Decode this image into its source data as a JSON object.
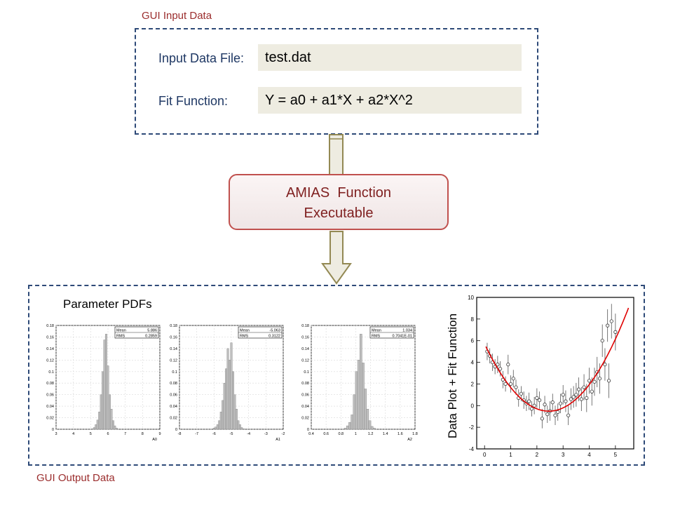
{
  "input_section": {
    "label": "GUI Input Data",
    "fields": [
      {
        "label": "Input Data File:",
        "value": "test.dat"
      },
      {
        "label": "Fit Function:",
        "value": "Y = a0 + a1*X + a2*X^2"
      }
    ]
  },
  "executable": {
    "line1": "AMIAS  Function",
    "line2": "Executable"
  },
  "output_section": {
    "label": "GUI Output Data",
    "pdf_title": "Parameter PDFs",
    "fit_plot_label": "Data Plot + Fit Function"
  },
  "colors": {
    "section_label": "#9b2d2d",
    "dashed_border": "#2e4a78",
    "field_bg": "#eeece1",
    "exec_border": "#c0504d",
    "arrow_fill": "#eeece1",
    "arrow_stroke": "#938953",
    "fit_curve": "#e00000",
    "hist_fill": "#bfbfbf"
  },
  "chart_data": [
    {
      "type": "bar",
      "xlabel": "A0",
      "xticks": [
        3,
        4,
        5,
        6,
        7,
        8,
        9
      ],
      "yticks": [
        0,
        0.02,
        0.04,
        0.06,
        0.08,
        0.1,
        0.12,
        0.14,
        0.16,
        0.18
      ],
      "xlim": [
        3,
        9
      ],
      "ylim": [
        0,
        0.18
      ],
      "stats": [
        {
          "name": "Mean",
          "value": "5.886"
        },
        {
          "name": "RMS",
          "value": "0.2859"
        }
      ],
      "bins": [
        [
          5.1,
          0.001
        ],
        [
          5.2,
          0.003
        ],
        [
          5.3,
          0.008
        ],
        [
          5.4,
          0.016
        ],
        [
          5.5,
          0.03
        ],
        [
          5.6,
          0.06
        ],
        [
          5.7,
          0.1
        ],
        [
          5.8,
          0.155
        ],
        [
          5.9,
          0.165
        ],
        [
          6.0,
          0.11
        ],
        [
          6.1,
          0.06
        ],
        [
          6.2,
          0.035
        ],
        [
          6.3,
          0.015
        ],
        [
          6.4,
          0.006
        ],
        [
          6.5,
          0.002
        ]
      ]
    },
    {
      "type": "bar",
      "xlabel": "A1",
      "xticks": [
        -8,
        -7,
        -6,
        -5,
        -4,
        -3,
        -2
      ],
      "yticks": [
        0,
        0.02,
        0.04,
        0.06,
        0.08,
        0.1,
        0.12,
        0.14,
        0.16,
        0.18
      ],
      "xlim": [
        -8,
        -2
      ],
      "ylim": [
        0,
        0.18
      ],
      "stats": [
        {
          "name": "Mean",
          "value": "-5.063"
        },
        {
          "name": "RMS",
          "value": "0.3122"
        }
      ],
      "bins": [
        [
          -6.0,
          0.002
        ],
        [
          -5.9,
          0.004
        ],
        [
          -5.8,
          0.008
        ],
        [
          -5.7,
          0.015
        ],
        [
          -5.6,
          0.03
        ],
        [
          -5.5,
          0.05
        ],
        [
          -5.4,
          0.08
        ],
        [
          -5.3,
          0.105
        ],
        [
          -5.2,
          0.14
        ],
        [
          -5.1,
          0.12
        ],
        [
          -5.0,
          0.15
        ],
        [
          -4.9,
          0.1
        ],
        [
          -4.8,
          0.06
        ],
        [
          -4.7,
          0.035
        ],
        [
          -4.6,
          0.015
        ],
        [
          -4.5,
          0.008
        ],
        [
          -4.4,
          0.003
        ],
        [
          -4.3,
          0.001
        ]
      ]
    },
    {
      "type": "bar",
      "xlabel": "A2",
      "xticks": [
        0.4,
        0.6,
        0.8,
        1,
        1.2,
        1.4,
        1.6,
        1.8
      ],
      "yticks": [
        0,
        0.02,
        0.04,
        0.06,
        0.08,
        0.1,
        0.12,
        0.14,
        0.16,
        0.18
      ],
      "xlim": [
        0.4,
        1.8
      ],
      "ylim": [
        0,
        0.18
      ],
      "stats": [
        {
          "name": "Mean",
          "value": "1.034"
        },
        {
          "name": "RMS",
          "value": "0.7041E-01"
        }
      ],
      "bins": [
        [
          0.86,
          0.002
        ],
        [
          0.89,
          0.006
        ],
        [
          0.92,
          0.012
        ],
        [
          0.95,
          0.025
        ],
        [
          0.98,
          0.06
        ],
        [
          1.01,
          0.1
        ],
        [
          1.04,
          0.12
        ],
        [
          1.07,
          0.165
        ],
        [
          1.1,
          0.115
        ],
        [
          1.13,
          0.07
        ],
        [
          1.16,
          0.035
        ],
        [
          1.19,
          0.015
        ],
        [
          1.22,
          0.005
        ],
        [
          1.25,
          0.002
        ]
      ]
    },
    {
      "type": "scatter",
      "xticks": [
        0,
        1,
        2,
        3,
        4,
        5
      ],
      "yticks": [
        -4,
        -2,
        0,
        2,
        4,
        6,
        8,
        10
      ],
      "xlim": [
        -0.3,
        5.7
      ],
      "ylim": [
        -4,
        10
      ],
      "fit_coeffs": [
        5.7,
        -5.06,
        1.03
      ],
      "fit_range": [
        0.05,
        5.5
      ],
      "points": [
        {
          "x": 0.1,
          "y": 5.0,
          "e": 0.8
        },
        {
          "x": 0.2,
          "y": 4.6,
          "e": 0.7
        },
        {
          "x": 0.3,
          "y": 4.0,
          "e": 0.8
        },
        {
          "x": 0.4,
          "y": 3.6,
          "e": 0.7
        },
        {
          "x": 0.5,
          "y": 3.8,
          "e": 0.8
        },
        {
          "x": 0.6,
          "y": 3.4,
          "e": 0.7
        },
        {
          "x": 0.7,
          "y": 2.4,
          "e": 0.8
        },
        {
          "x": 0.8,
          "y": 2.0,
          "e": 0.7
        },
        {
          "x": 0.9,
          "y": 3.8,
          "e": 0.9
        },
        {
          "x": 1.0,
          "y": 2.0,
          "e": 0.8
        },
        {
          "x": 1.1,
          "y": 2.5,
          "e": 0.8
        },
        {
          "x": 1.2,
          "y": 1.7,
          "e": 0.7
        },
        {
          "x": 1.3,
          "y": 0.7,
          "e": 0.8
        },
        {
          "x": 1.4,
          "y": 1.1,
          "e": 0.7
        },
        {
          "x": 1.5,
          "y": 0.5,
          "e": 0.8
        },
        {
          "x": 1.6,
          "y": 0.2,
          "e": 0.7
        },
        {
          "x": 1.7,
          "y": 0.4,
          "e": 0.8
        },
        {
          "x": 1.8,
          "y": -0.3,
          "e": 0.7
        },
        {
          "x": 1.9,
          "y": 0.0,
          "e": 0.8
        },
        {
          "x": 2.0,
          "y": 0.7,
          "e": 0.9
        },
        {
          "x": 2.1,
          "y": 0.5,
          "e": 0.8
        },
        {
          "x": 2.2,
          "y": -1.2,
          "e": 0.9
        },
        {
          "x": 2.3,
          "y": 0.1,
          "e": 0.8
        },
        {
          "x": 2.4,
          "y": -0.8,
          "e": 0.8
        },
        {
          "x": 2.5,
          "y": -0.5,
          "e": 0.9
        },
        {
          "x": 2.6,
          "y": 0.3,
          "e": 0.8
        },
        {
          "x": 2.7,
          "y": -0.9,
          "e": 0.9
        },
        {
          "x": 2.8,
          "y": -0.6,
          "e": 0.8
        },
        {
          "x": 2.9,
          "y": 0.2,
          "e": 0.9
        },
        {
          "x": 3.0,
          "y": 1.0,
          "e": 0.9
        },
        {
          "x": 3.1,
          "y": 0.4,
          "e": 1.0
        },
        {
          "x": 3.2,
          "y": -0.9,
          "e": 0.9
        },
        {
          "x": 3.3,
          "y": 0.6,
          "e": 1.0
        },
        {
          "x": 3.4,
          "y": 0.8,
          "e": 1.0
        },
        {
          "x": 3.5,
          "y": 1.0,
          "e": 1.1
        },
        {
          "x": 3.6,
          "y": 1.5,
          "e": 1.1
        },
        {
          "x": 3.7,
          "y": 0.6,
          "e": 1.1
        },
        {
          "x": 3.8,
          "y": 1.7,
          "e": 1.2
        },
        {
          "x": 3.9,
          "y": 0.7,
          "e": 1.3
        },
        {
          "x": 4.0,
          "y": 2.3,
          "e": 1.2
        },
        {
          "x": 4.1,
          "y": 1.3,
          "e": 1.3
        },
        {
          "x": 4.2,
          "y": 2.2,
          "e": 1.3
        },
        {
          "x": 4.3,
          "y": 3.1,
          "e": 1.4
        },
        {
          "x": 4.4,
          "y": 2.5,
          "e": 1.4
        },
        {
          "x": 4.5,
          "y": 6.0,
          "e": 1.5
        },
        {
          "x": 4.6,
          "y": 3.8,
          "e": 1.5
        },
        {
          "x": 4.7,
          "y": 7.4,
          "e": 1.5
        },
        {
          "x": 4.75,
          "y": 2.3,
          "e": 1.6
        },
        {
          "x": 4.85,
          "y": 7.8,
          "e": 1.6
        },
        {
          "x": 5.0,
          "y": 6.8,
          "e": 1.7
        }
      ]
    }
  ]
}
